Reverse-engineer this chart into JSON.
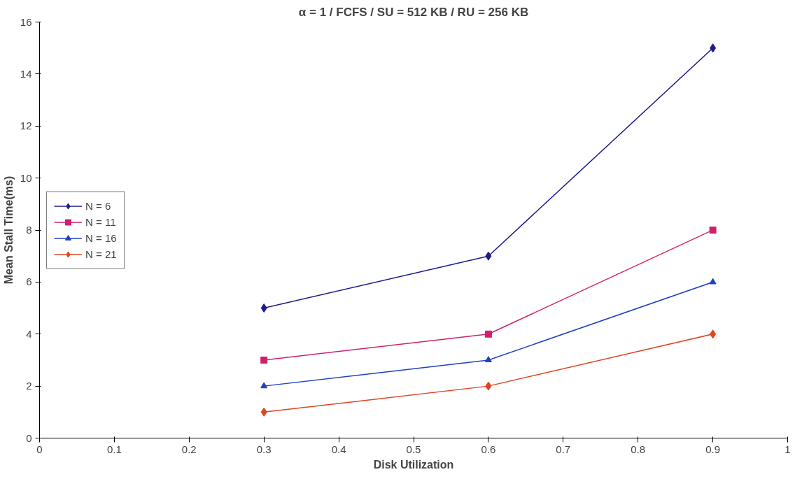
{
  "chart_data": {
    "type": "line",
    "title": "α = 1 / FCFS / SU = 512 KB / RU = 256 KB",
    "xlabel": "Disk Utilization",
    "ylabel": "Mean Stall Time(ms)",
    "x": [
      0.3,
      0.6,
      0.9
    ],
    "series": [
      {
        "name": "N = 6",
        "color": "#1c1c8c",
        "marker": "diamond",
        "values": [
          5,
          7,
          15
        ]
      },
      {
        "name": "N = 11",
        "color": "#d0206c",
        "marker": "square",
        "values": [
          3,
          4,
          8
        ]
      },
      {
        "name": "N = 16",
        "color": "#2040c0",
        "marker": "triangle",
        "values": [
          2,
          3,
          6
        ]
      },
      {
        "name": "N = 21",
        "color": "#e04420",
        "marker": "diamond",
        "values": [
          1,
          2,
          4
        ]
      }
    ],
    "xlim": [
      0,
      1
    ],
    "ylim": [
      0,
      16
    ],
    "xticks": [
      0,
      0.1,
      0.2,
      0.3,
      0.4,
      0.5,
      0.6,
      0.7,
      0.8,
      0.9,
      1
    ],
    "yticks": [
      0,
      2,
      4,
      6,
      8,
      10,
      12,
      14,
      16
    ],
    "grid": false,
    "legend": "left",
    "line_style": "solid"
  }
}
